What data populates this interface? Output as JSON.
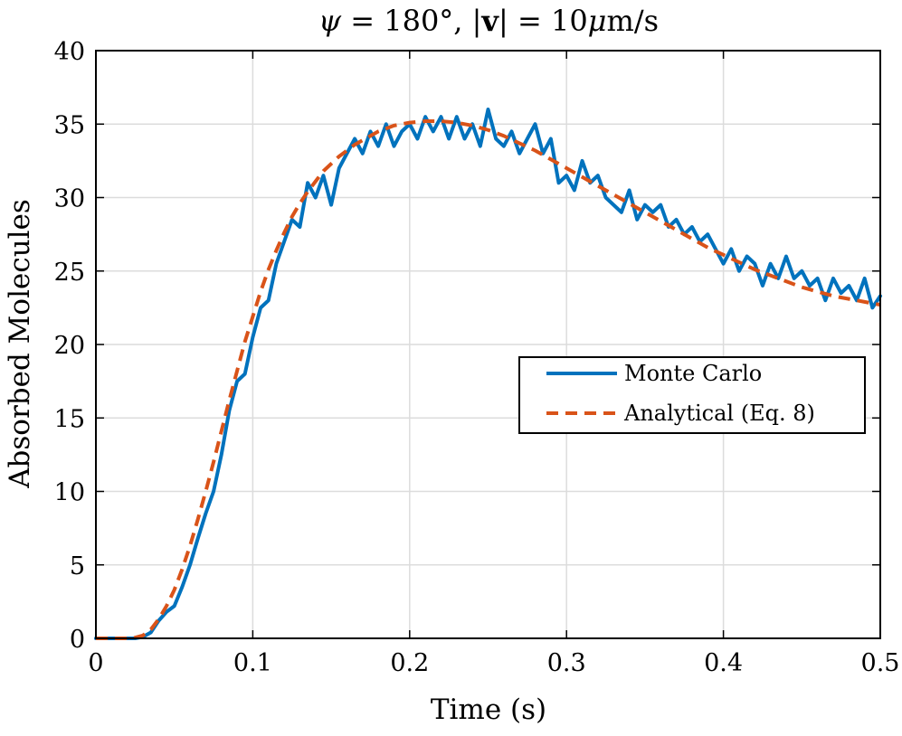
{
  "chart_data": {
    "type": "line",
    "title": "ψ = 180°, |v| = 10μm/s",
    "title_parts": {
      "lhs": "ψ",
      "eq1": " = 180°, |",
      "bold": "v",
      "eq2": "| = 10",
      "mu": "μ",
      "unit": "m/s"
    },
    "xlabel": "Time (s)",
    "ylabel": "Absorbed Molecules",
    "xlim": [
      0,
      0.5
    ],
    "ylim": [
      0,
      40
    ],
    "xticks": [
      0,
      0.1,
      0.2,
      0.3,
      0.4,
      0.5
    ],
    "xtick_labels": [
      "0",
      "0.1",
      "0.2",
      "0.3",
      "0.4",
      "0.5"
    ],
    "yticks": [
      0,
      5,
      10,
      15,
      20,
      25,
      30,
      35,
      40
    ],
    "ytick_labels": [
      "0",
      "5",
      "10",
      "15",
      "20",
      "25",
      "30",
      "35",
      "40"
    ],
    "grid": true,
    "legend_position": "right",
    "series": [
      {
        "name": "Monte Carlo",
        "color": "#0072BD",
        "style": "solid",
        "x": [
          0,
          0.01,
          0.02,
          0.025,
          0.03,
          0.035,
          0.04,
          0.045,
          0.05,
          0.055,
          0.06,
          0.065,
          0.07,
          0.075,
          0.08,
          0.085,
          0.09,
          0.095,
          0.1,
          0.105,
          0.11,
          0.115,
          0.12,
          0.125,
          0.13,
          0.135,
          0.14,
          0.145,
          0.15,
          0.155,
          0.16,
          0.165,
          0.17,
          0.175,
          0.18,
          0.185,
          0.19,
          0.195,
          0.2,
          0.205,
          0.21,
          0.215,
          0.22,
          0.225,
          0.23,
          0.235,
          0.24,
          0.245,
          0.25,
          0.255,
          0.26,
          0.265,
          0.27,
          0.275,
          0.28,
          0.285,
          0.29,
          0.295,
          0.3,
          0.305,
          0.31,
          0.315,
          0.32,
          0.325,
          0.33,
          0.335,
          0.34,
          0.345,
          0.35,
          0.355,
          0.36,
          0.365,
          0.37,
          0.375,
          0.38,
          0.385,
          0.39,
          0.395,
          0.4,
          0.405,
          0.41,
          0.415,
          0.42,
          0.425,
          0.43,
          0.435,
          0.44,
          0.445,
          0.45,
          0.455,
          0.46,
          0.465,
          0.47,
          0.475,
          0.48,
          0.485,
          0.49,
          0.495,
          0.5
        ],
        "y": [
          0,
          0,
          0,
          0,
          0.1,
          0.4,
          1.2,
          1.8,
          2.2,
          3.5,
          5.0,
          6.8,
          8.5,
          10.0,
          12.5,
          15.5,
          17.5,
          18.0,
          20.5,
          22.5,
          23.0,
          25.5,
          27.0,
          28.5,
          28.0,
          31.0,
          30.0,
          31.5,
          29.5,
          32.0,
          33.0,
          34.0,
          33.0,
          34.5,
          33.5,
          35.0,
          33.5,
          34.5,
          35.0,
          34.0,
          35.5,
          34.5,
          35.5,
          34.0,
          35.5,
          34.0,
          35.0,
          33.5,
          36.0,
          34.0,
          33.5,
          34.5,
          33.0,
          34.0,
          35.0,
          33.0,
          34.0,
          31.0,
          31.5,
          30.5,
          32.5,
          31.0,
          31.5,
          30.0,
          29.5,
          29.0,
          30.5,
          28.5,
          29.5,
          29.0,
          29.5,
          28.0,
          28.5,
          27.5,
          28.0,
          27.0,
          27.5,
          26.5,
          25.5,
          26.5,
          25.0,
          26.0,
          25.5,
          24.0,
          25.5,
          24.5,
          26.0,
          24.5,
          25.0,
          24.0,
          24.5,
          23.0,
          24.5,
          23.5,
          24.0,
          23.0,
          24.5,
          22.5,
          23.3
        ]
      },
      {
        "name": "Analytical (Eq. 8)",
        "color": "#D95319",
        "style": "dashed",
        "x": [
          0,
          0.01,
          0.02,
          0.025,
          0.03,
          0.035,
          0.04,
          0.045,
          0.05,
          0.055,
          0.06,
          0.065,
          0.07,
          0.075,
          0.08,
          0.085,
          0.09,
          0.095,
          0.1,
          0.105,
          0.11,
          0.115,
          0.12,
          0.125,
          0.13,
          0.135,
          0.14,
          0.145,
          0.15,
          0.155,
          0.16,
          0.165,
          0.17,
          0.175,
          0.18,
          0.185,
          0.19,
          0.195,
          0.2,
          0.21,
          0.22,
          0.23,
          0.24,
          0.25,
          0.26,
          0.27,
          0.28,
          0.29,
          0.3,
          0.31,
          0.32,
          0.33,
          0.34,
          0.35,
          0.36,
          0.37,
          0.38,
          0.39,
          0.4,
          0.41,
          0.42,
          0.43,
          0.44,
          0.45,
          0.46,
          0.47,
          0.48,
          0.49,
          0.5
        ],
        "y": [
          0,
          0,
          0,
          0.05,
          0.2,
          0.6,
          1.3,
          2.2,
          3.3,
          4.7,
          6.3,
          8.1,
          10.0,
          12.0,
          14.1,
          16.2,
          18.2,
          20.2,
          21.9,
          23.6,
          25.1,
          26.4,
          27.6,
          28.7,
          29.6,
          30.4,
          31.1,
          31.8,
          32.3,
          32.8,
          33.2,
          33.6,
          33.9,
          34.2,
          34.5,
          34.7,
          34.9,
          35.0,
          35.1,
          35.2,
          35.2,
          35.1,
          34.9,
          34.6,
          34.2,
          33.7,
          33.2,
          32.6,
          32.0,
          31.4,
          30.8,
          30.2,
          29.6,
          29.0,
          28.4,
          27.8,
          27.2,
          26.6,
          26.1,
          25.6,
          25.1,
          24.7,
          24.3,
          23.9,
          23.6,
          23.3,
          23.1,
          22.9,
          22.7
        ]
      }
    ]
  }
}
